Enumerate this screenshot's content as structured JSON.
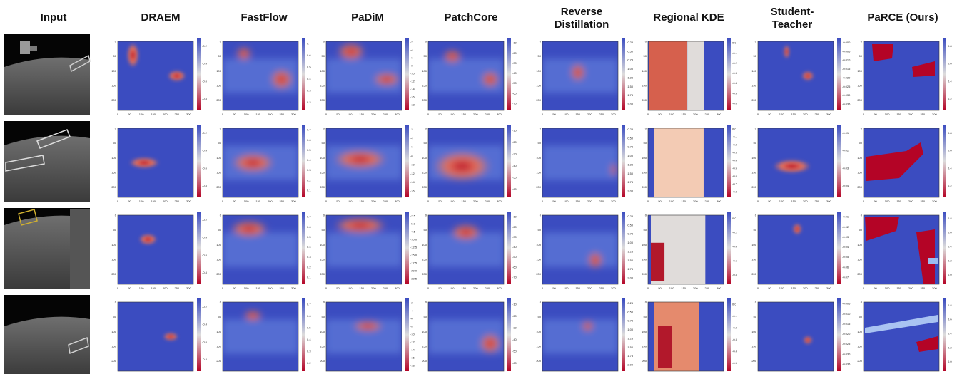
{
  "figure": {
    "columns": [
      {
        "id": "input",
        "title": "Input"
      },
      {
        "id": "draem",
        "title": "DRAEM"
      },
      {
        "id": "fastflow",
        "title": "FastFlow"
      },
      {
        "id": "padim",
        "title": "PaDiM"
      },
      {
        "id": "patchcore",
        "title": "PatchCore"
      },
      {
        "id": "rd",
        "title": "Reverse Distillation"
      },
      {
        "id": "kde",
        "title": "Regional KDE"
      },
      {
        "id": "st",
        "title": "Student-Teacher"
      },
      {
        "id": "parce",
        "title": "PaRCE (Ours)"
      }
    ],
    "x_ticks": [
      "0",
      "50",
      "100",
      "150",
      "200",
      "250",
      "300"
    ],
    "y_ticks": [
      "0",
      "50",
      "100",
      "150",
      "200"
    ],
    "colors": {
      "cold": "#3b4cc0",
      "mid": "#dddcdc",
      "hot": "#b40426",
      "kde_panel": "#d6604d",
      "kde_dark": "#b2182b",
      "kde_light": "#e0dcda"
    },
    "colorbars": [
      {
        "draem": [
          "-0.2",
          "-0.4",
          "-0.6",
          "-0.8"
        ],
        "fastflow": [
          "0.7",
          "0.6",
          "0.5",
          "0.4",
          "0.3",
          "0.2"
        ],
        "padim": [
          "-2",
          "-4",
          "-6",
          "-8",
          "-10",
          "-12",
          "-14",
          "-16",
          "-18"
        ],
        "patchcore": [
          "-10",
          "-20",
          "-30",
          "-40",
          "-50",
          "-60",
          "-70"
        ],
        "rd": [
          "-0.25",
          "-0.50",
          "-0.75",
          "-1.00",
          "-1.25",
          "-1.50",
          "-1.75",
          "-2.00"
        ],
        "kde": [
          "0.0",
          "-0.1",
          "-0.2",
          "-0.3",
          "-0.4",
          "-0.5",
          "-0.6"
        ],
        "st": [
          "-0.000",
          "-0.005",
          "-0.010",
          "-0.015",
          "-0.020",
          "-0.025",
          "-0.030",
          "-0.035"
        ],
        "parce": [
          "0.8",
          "0.6",
          "0.4",
          "0.2"
        ]
      },
      {
        "draem": [
          "-0.2",
          "-0.4",
          "-0.6",
          "-0.8"
        ],
        "fastflow": [
          "0.7",
          "0.6",
          "0.5",
          "0.4",
          "0.3",
          "0.2",
          "0.1"
        ],
        "padim": [
          "-2",
          "-4",
          "-6",
          "-8",
          "-10",
          "-12",
          "-14",
          "-16"
        ],
        "patchcore": [
          "-10",
          "-20",
          "-30",
          "-40",
          "-50",
          "-60"
        ],
        "rd": [
          "-0.25",
          "-0.50",
          "-0.75",
          "-1.00",
          "-1.25",
          "-1.50",
          "-1.75",
          "-2.00"
        ],
        "kde": [
          "0.0",
          "-0.1",
          "-0.2",
          "-0.3",
          "-0.4",
          "-0.5",
          "-0.6",
          "-0.7",
          "-0.8"
        ],
        "st": [
          "-0.01",
          "-0.02",
          "-0.03",
          "-0.04"
        ],
        "parce": [
          "0.8",
          "0.6",
          "0.4",
          "0.2"
        ]
      },
      {
        "draem": [
          "-0.2",
          "-0.4",
          "-0.6",
          "-0.8"
        ],
        "fastflow": [
          "0.7",
          "0.6",
          "0.5",
          "0.4",
          "0.3",
          "0.2",
          "0.1"
        ],
        "padim": [
          "-2.5",
          "-5.0",
          "-7.5",
          "-10.0",
          "-12.5",
          "-15.0",
          "-17.5",
          "-20.0",
          "-22.5"
        ],
        "patchcore": [
          "-10",
          "-20",
          "-30",
          "-40",
          "-50",
          "-60",
          "-70"
        ],
        "rd": [
          "-0.25",
          "-0.50",
          "-0.75",
          "-1.00",
          "-1.25",
          "-1.50",
          "-1.75",
          "-2.00"
        ],
        "kde": [
          "0.0",
          "-0.2",
          "-0.4",
          "-0.6",
          "-0.8"
        ],
        "st": [
          "-0.01",
          "-0.02",
          "-0.03",
          "-0.04",
          "-0.05",
          "-0.06",
          "-0.07"
        ],
        "parce": [
          "0.8",
          "0.6",
          "0.4",
          "0.2",
          "0.0"
        ]
      },
      {
        "draem": [
          "-0.2",
          "-0.4",
          "-0.6",
          "-0.8"
        ],
        "fastflow": [
          "0.7",
          "0.6",
          "0.5",
          "0.4",
          "0.3",
          "0.2"
        ],
        "padim": [
          "-2",
          "-4",
          "-6",
          "-8",
          "-10",
          "-12",
          "-14",
          "-16",
          "-18"
        ],
        "patchcore": [
          "-10",
          "-20",
          "-30",
          "-40",
          "-50",
          "-60"
        ],
        "rd": [
          "-0.25",
          "-0.50",
          "-0.75",
          "-1.00",
          "-1.25",
          "-1.50",
          "-1.75",
          "-2.00"
        ],
        "kde": [
          "0.0",
          "-0.1",
          "-0.2",
          "-0.3",
          "-0.4",
          "-0.5"
        ],
        "st": [
          "-0.005",
          "-0.010",
          "-0.015",
          "-0.020",
          "-0.025",
          "-0.030",
          "-0.035"
        ],
        "parce": [
          "0.8",
          "0.6",
          "0.4",
          "0.2",
          "0.0"
        ]
      }
    ]
  }
}
